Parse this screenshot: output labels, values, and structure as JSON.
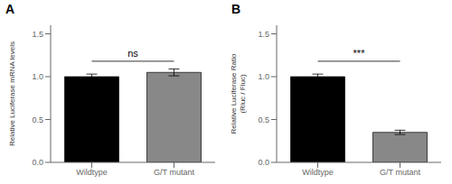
{
  "chart_data": [
    {
      "type": "bar",
      "title": "A",
      "categories": [
        "Wildtype",
        "G/T mutant"
      ],
      "values": [
        1.0,
        1.05
      ],
      "errors": [
        0.03,
        0.04
      ],
      "colors": [
        "#000000",
        "#888888"
      ],
      "ylabel": "Relative Luciferase mRNA levels",
      "ylim": [
        0,
        1.6
      ],
      "yticks": [
        {
          "value": 0,
          "label": "0.0"
        },
        0.5,
        {
          "value": 1,
          "label": "1.0"
        },
        1.5
      ],
      "annotations": [
        {
          "text": "ns",
          "y": 1.18
        }
      ],
      "grid": false
    },
    {
      "type": "bar",
      "title": "B",
      "categories": [
        "Wildtype",
        "G/T mutant"
      ],
      "values": [
        1.0,
        0.35
      ],
      "errors": [
        0.03,
        0.025
      ],
      "colors": [
        "#000000",
        "#888888"
      ],
      "ylabel": "Relative Luciferase Ratio\n(Rluc / Fluc)",
      "ylim": [
        0,
        1.6
      ],
      "yticks": [
        {
          "value": 0,
          "label": "0.0"
        },
        0.5,
        {
          "value": 1,
          "label": "1.0"
        },
        1.5
      ],
      "annotations": [
        {
          "text": "***",
          "y": 1.18
        }
      ],
      "grid": false
    }
  ]
}
